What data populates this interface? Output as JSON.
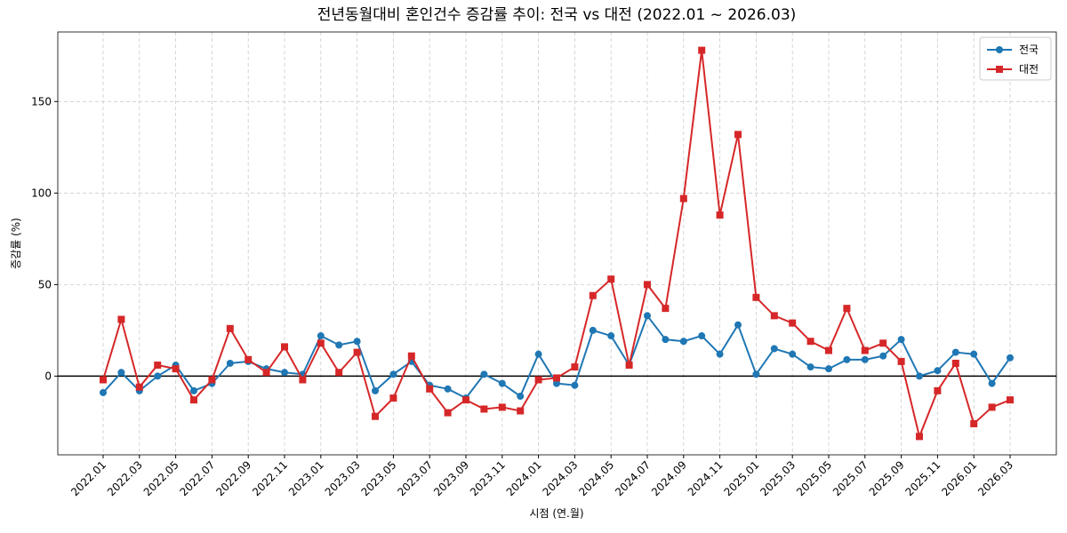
{
  "chart_data": {
    "type": "line",
    "title": "전년동월대비 혼인건수 증감률 추이: 전국 vs 대전 (2022.01 ~ 2026.03)",
    "x_label": "시점 (연.월)",
    "y_label": "증감률 (%)",
    "categories": [
      "2022.01",
      null,
      "2022.03",
      null,
      "2022.05",
      null,
      "2022.07",
      null,
      "2022.09",
      null,
      "2022.11",
      null,
      "2023.01",
      null,
      "2023.03",
      null,
      "2023.05",
      null,
      "2023.07",
      null,
      "2023.09",
      null,
      "2023.11",
      null,
      "2024.01",
      null,
      "2024.03",
      null,
      "2024.05",
      null,
      "2024.07",
      null,
      "2024.09",
      null,
      "2024.11",
      null,
      "2025.01",
      null,
      "2025.03",
      null,
      "2025.05",
      null,
      "2025.07",
      null,
      "2025.09",
      null,
      "2025.11",
      null,
      "2026.01",
      null,
      "2026.03"
    ],
    "series": [
      {
        "name": "전국",
        "color": "#1f77b4",
        "marker": "circle",
        "values": [
          -9,
          2,
          -8,
          0,
          6,
          -8,
          -4,
          7,
          8,
          4,
          2,
          1,
          22,
          17,
          19,
          -8,
          1,
          8,
          -5,
          -7,
          -12,
          1,
          -4,
          -11,
          12,
          -4,
          -5,
          25,
          22,
          6,
          33,
          20,
          19,
          22,
          12,
          28,
          1,
          15,
          12,
          5,
          4,
          9,
          9,
          11,
          20,
          0,
          3,
          13,
          12,
          -4,
          10
        ]
      },
      {
        "name": "대전",
        "color": "#d62728",
        "marker": "square",
        "values": [
          -2,
          31,
          -6,
          6,
          4,
          -13,
          -2,
          26,
          9,
          2,
          16,
          -2,
          18,
          2,
          13,
          -22,
          -12,
          11,
          -7,
          -20,
          -13,
          -18,
          -17,
          -19,
          -2,
          -1,
          5,
          44,
          53,
          6,
          50,
          37,
          97,
          178,
          88,
          132,
          43,
          33,
          29,
          19,
          14,
          37,
          14,
          18,
          8,
          -33,
          -8,
          7,
          -26,
          -17,
          -13
        ]
      }
    ],
    "ylim": [
      -43,
      188
    ],
    "yticks": [
      0,
      50,
      100,
      150
    ],
    "grid": true,
    "zero_line": true,
    "legend": "upper right"
  }
}
